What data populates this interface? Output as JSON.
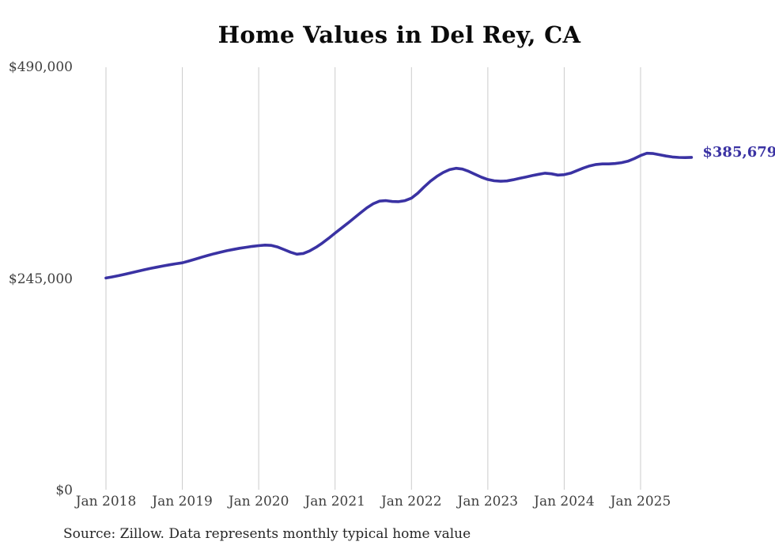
{
  "title": "Home Values in Del Rey, CA",
  "source_note": "Source: Zillow. Data represents monthly typical home value",
  "latest_value_label": "$385,679",
  "colors": {
    "line": "#3a32a3",
    "grid": "#cbcbcb",
    "tick_text": "#3f3f3f",
    "title_text": "#0b0b0b",
    "source_text": "#262626",
    "background": "#ffffff"
  },
  "chart_data": {
    "type": "line",
    "title": "Home Values in Del Rey, CA",
    "xlabel": "",
    "ylabel": "",
    "ylim": [
      0,
      490000
    ],
    "y_ticks": [
      {
        "label": "$0",
        "value": 0
      },
      {
        "label": "$245,000",
        "value": 245000
      },
      {
        "label": "$490,000",
        "value": 490000
      }
    ],
    "x_tick_labels": [
      "Jan 2018",
      "Jan 2019",
      "Jan 2020",
      "Jan 2021",
      "Jan 2022",
      "Jan 2023",
      "Jan 2024",
      "Jan 2025"
    ],
    "x_range": [
      "Jan 2018",
      "Sep 2025"
    ],
    "frequency": "monthly",
    "grid": "vertical-only",
    "legend": "none",
    "annotations": [
      {
        "text": "$385,679",
        "position": "end-of-line"
      }
    ],
    "series": [
      {
        "name": "Typical home value",
        "values": [
          246000,
          247300,
          248800,
          250400,
          252100,
          253800,
          255500,
          257100,
          258600,
          260000,
          261300,
          262500,
          263600,
          265600,
          267800,
          270000,
          272100,
          274100,
          276000,
          277600,
          279100,
          280400,
          281500,
          282600,
          283500,
          284100,
          283700,
          281800,
          278900,
          275900,
          273600,
          274400,
          277300,
          281500,
          286500,
          292100,
          298000,
          303800,
          309500,
          315500,
          321500,
          327300,
          332000,
          335000,
          335600,
          334600,
          334400,
          335600,
          338500,
          344200,
          351500,
          358200,
          363700,
          368200,
          371500,
          373000,
          372100,
          369500,
          366000,
          362700,
          360000,
          358600,
          358000,
          358400,
          359800,
          361400,
          363000,
          364600,
          366100,
          367400,
          366600,
          365200,
          365600,
          367400,
          370300,
          373300,
          375800,
          377400,
          378100,
          378100,
          378500,
          379500,
          381200,
          384200,
          387800,
          390400,
          390100,
          388700,
          387200,
          386100,
          385600,
          385400,
          385679
        ]
      }
    ]
  }
}
